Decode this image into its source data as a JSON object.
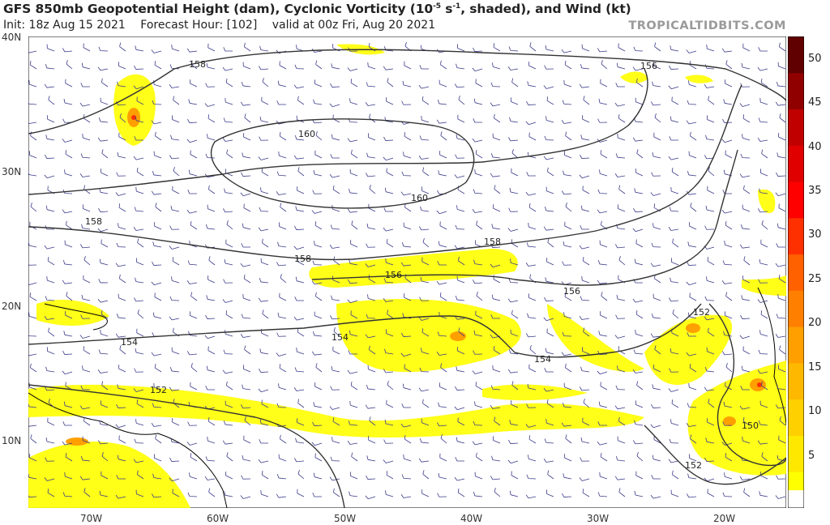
{
  "header": {
    "title_pre": "GFS 850mb Geopotential Height (dam), Cyclonic Vorticity (10",
    "title_exp": "-5",
    "title_mid": " s",
    "title_exp2": "-1",
    "title_post": ", shaded), and Wind (kt)",
    "init": "Init: 18z Aug 15 2021",
    "forecast_hour": "Forecast Hour: [102]",
    "valid": "valid at 00z Fri, Aug 20 2021",
    "brand": "TROPICALTIDBITS.COM"
  },
  "axes": {
    "lat_labels": [
      "40N",
      "30N",
      "20N",
      "10N"
    ],
    "lon_labels": [
      "70W",
      "60W",
      "50W",
      "40W",
      "30W",
      "20W"
    ]
  },
  "contours": {
    "labels": [
      "158",
      "156",
      "160",
      "160",
      "158",
      "158",
      "158",
      "156",
      "156",
      "154",
      "154",
      "154",
      "152",
      "152",
      "150",
      "152"
    ]
  },
  "colorbar": {
    "ticks": [
      "50",
      "45",
      "40",
      "35",
      "30",
      "25",
      "20",
      "15",
      "10",
      "5"
    ],
    "colors": [
      "#ffff00",
      "#ffe800",
      "#ffd000",
      "#ffb800",
      "#ffa000",
      "#ff8000",
      "#ff6000",
      "#ff3000",
      "#ff0000",
      "#e00000",
      "#c00000",
      "#900000",
      "#600000"
    ]
  }
}
